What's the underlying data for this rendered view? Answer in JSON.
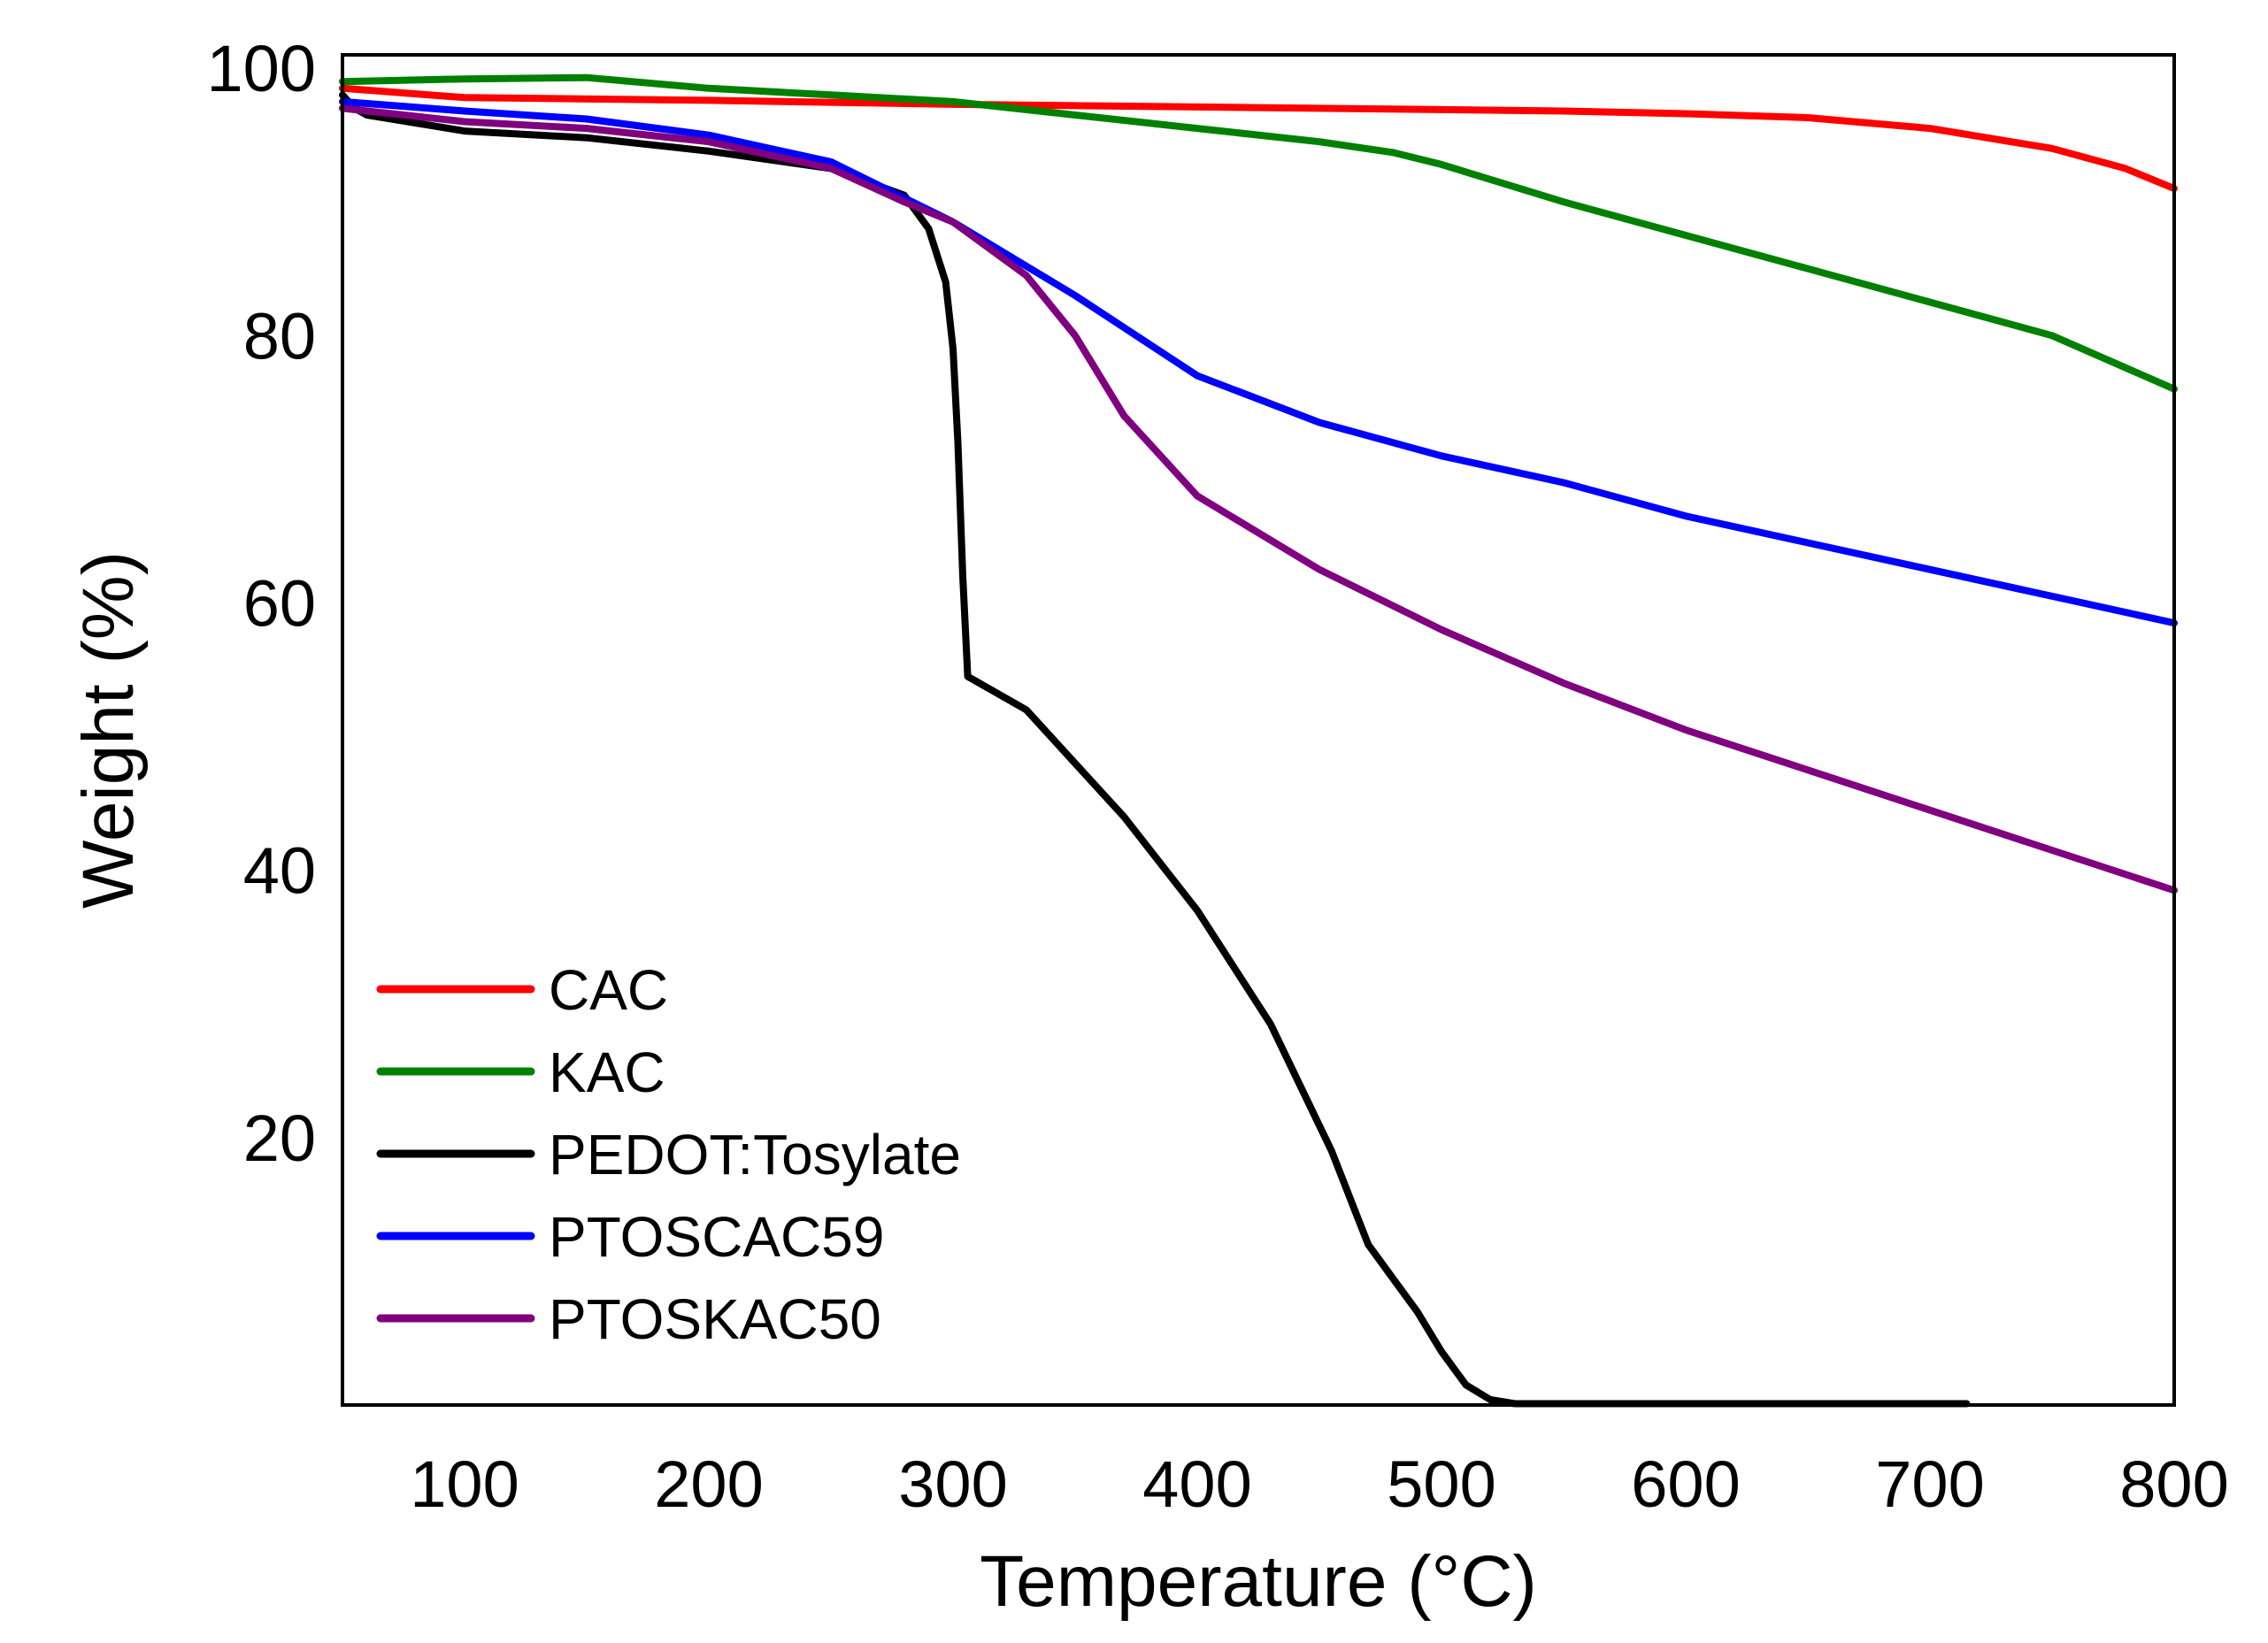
{
  "chart_data": {
    "type": "line",
    "title": "",
    "xlabel": "Temperature (°C)",
    "ylabel": "Weight (%)",
    "xlim": [
      50,
      800
    ],
    "ylim": [
      0,
      101
    ],
    "xticks": [
      100,
      200,
      300,
      400,
      500,
      600,
      700,
      800
    ],
    "yticks": [
      20,
      40,
      60,
      80,
      100
    ],
    "grid": false,
    "legend_position": "bottom-left",
    "series": [
      {
        "name": "CAC",
        "color": "#ff0000",
        "points": [
          [
            50,
            98.5
          ],
          [
            100,
            97.8
          ],
          [
            200,
            97.6
          ],
          [
            300,
            97.3
          ],
          [
            400,
            97.1
          ],
          [
            500,
            96.9
          ],
          [
            550,
            96.8
          ],
          [
            600,
            96.6
          ],
          [
            650,
            96.3
          ],
          [
            700,
            95.5
          ],
          [
            750,
            94.0
          ],
          [
            780,
            92.5
          ],
          [
            800,
            91.0
          ]
        ]
      },
      {
        "name": "KAC",
        "color": "#008000",
        "points": [
          [
            50,
            99.0
          ],
          [
            100,
            99.2
          ],
          [
            150,
            99.3
          ],
          [
            200,
            98.5
          ],
          [
            250,
            98.0
          ],
          [
            300,
            97.5
          ],
          [
            350,
            96.5
          ],
          [
            400,
            95.5
          ],
          [
            450,
            94.5
          ],
          [
            480,
            93.7
          ],
          [
            500,
            92.8
          ],
          [
            550,
            90.0
          ],
          [
            600,
            87.5
          ],
          [
            650,
            85.0
          ],
          [
            700,
            82.5
          ],
          [
            750,
            80.0
          ],
          [
            800,
            76.0
          ]
        ]
      },
      {
        "name": "PEDOT:Tosylate",
        "color": "#000000",
        "points": [
          [
            50,
            98.0
          ],
          [
            55,
            97.0
          ],
          [
            60,
            96.5
          ],
          [
            100,
            95.3
          ],
          [
            150,
            94.8
          ],
          [
            200,
            93.8
          ],
          [
            250,
            92.5
          ],
          [
            280,
            90.5
          ],
          [
            290,
            88.0
          ],
          [
            297,
            84.0
          ],
          [
            300,
            79.0
          ],
          [
            302,
            72.0
          ],
          [
            304,
            62.0
          ],
          [
            306,
            54.5
          ],
          [
            330,
            52.0
          ],
          [
            350,
            48.0
          ],
          [
            370,
            44.0
          ],
          [
            400,
            37.0
          ],
          [
            430,
            28.5
          ],
          [
            455,
            19.0
          ],
          [
            470,
            12.0
          ],
          [
            480,
            9.5
          ],
          [
            490,
            7.0
          ],
          [
            500,
            4.0
          ],
          [
            510,
            1.5
          ],
          [
            520,
            0.4
          ],
          [
            530,
            0.1
          ],
          [
            715,
            0.1
          ]
        ]
      },
      {
        "name": "PTOSCAC59",
        "color": "#0000ff",
        "points": [
          [
            50,
            97.5
          ],
          [
            100,
            96.8
          ],
          [
            150,
            96.2
          ],
          [
            200,
            95.0
          ],
          [
            250,
            93.0
          ],
          [
            300,
            88.5
          ],
          [
            350,
            83.0
          ],
          [
            400,
            77.0
          ],
          [
            450,
            73.5
          ],
          [
            500,
            71.0
          ],
          [
            550,
            69.0
          ],
          [
            600,
            66.5
          ],
          [
            650,
            64.5
          ],
          [
            700,
            62.5
          ],
          [
            750,
            60.5
          ],
          [
            800,
            58.5
          ]
        ]
      },
      {
        "name": "PTOSKAC50",
        "color": "#800080",
        "points": [
          [
            50,
            97.0
          ],
          [
            100,
            96.0
          ],
          [
            150,
            95.5
          ],
          [
            200,
            94.5
          ],
          [
            250,
            92.5
          ],
          [
            280,
            90.0
          ],
          [
            300,
            88.5
          ],
          [
            330,
            84.5
          ],
          [
            350,
            80.0
          ],
          [
            370,
            74.0
          ],
          [
            400,
            68.0
          ],
          [
            450,
            62.5
          ],
          [
            500,
            58.0
          ],
          [
            550,
            54.0
          ],
          [
            600,
            50.5
          ],
          [
            650,
            47.5
          ],
          [
            700,
            44.5
          ],
          [
            750,
            41.5
          ],
          [
            800,
            38.5
          ]
        ]
      }
    ]
  }
}
